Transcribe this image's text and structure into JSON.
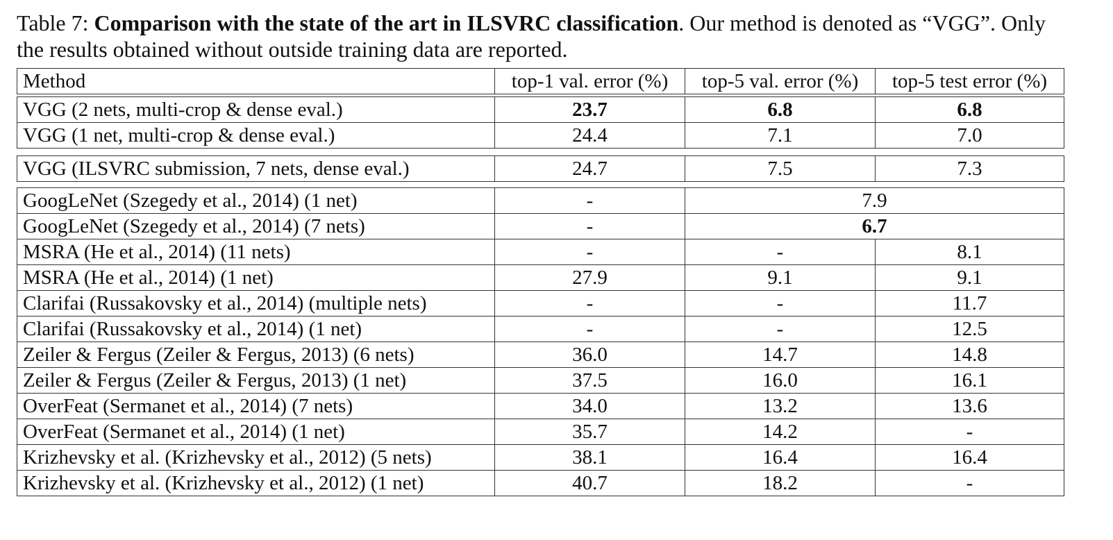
{
  "caption": {
    "label": "Table 7:",
    "title": "Comparison with the state of the art in ILSVRC classification",
    "text": ". Our method is denoted as “VGG”. Only the results obtained without outside training data are reported."
  },
  "table": {
    "header": [
      "Method",
      "top-1 val. error (%)",
      "top-5 val. error (%)",
      "top-5 test error (%)"
    ],
    "groups": [
      [
        [
          "VGG (2 nets, multi-crop & dense eval.)",
          "23.7",
          "6.8",
          "6.8"
        ],
        [
          "VGG (1 net, multi-crop & dense eval.)",
          "24.4",
          "7.1",
          "7.0"
        ]
      ],
      [
        [
          "VGG (ILSVRC submission, 7 nets, dense eval.)",
          "24.7",
          "7.5",
          "7.3"
        ]
      ],
      [
        [
          "GoogLeNet (Szegedy et al., 2014) (1 net)",
          "-",
          "7.9"
        ],
        [
          "GoogLeNet (Szegedy et al., 2014) (7 nets)",
          "-",
          "6.7"
        ],
        [
          "MSRA (He et al., 2014) (11 nets)",
          "-",
          "-",
          "8.1"
        ],
        [
          "MSRA (He et al., 2014) (1 net)",
          "27.9",
          "9.1",
          "9.1"
        ],
        [
          "Clarifai (Russakovsky et al., 2014) (multiple nets)",
          "-",
          "-",
          "11.7"
        ],
        [
          "Clarifai (Russakovsky et al., 2014) (1 net)",
          "-",
          "-",
          "12.5"
        ],
        [
          "Zeiler & Fergus (Zeiler & Fergus, 2013) (6 nets)",
          "36.0",
          "14.7",
          "14.8"
        ],
        [
          "Zeiler & Fergus (Zeiler & Fergus, 2013) (1 net)",
          "37.5",
          "16.0",
          "16.1"
        ],
        [
          "OverFeat (Sermanet et al., 2014) (7 nets)",
          "34.0",
          "13.2",
          "13.6"
        ],
        [
          "OverFeat (Sermanet et al., 2014) (1 net)",
          "35.7",
          "14.2",
          "-"
        ],
        [
          "Krizhevsky et al. (Krizhevsky et al., 2012) (5 nets)",
          "38.1",
          "16.4",
          "16.4"
        ],
        [
          "Krizhevsky et al. (Krizhevsky et al., 2012) (1 net)",
          "40.7",
          "18.2",
          "-"
        ]
      ]
    ]
  }
}
